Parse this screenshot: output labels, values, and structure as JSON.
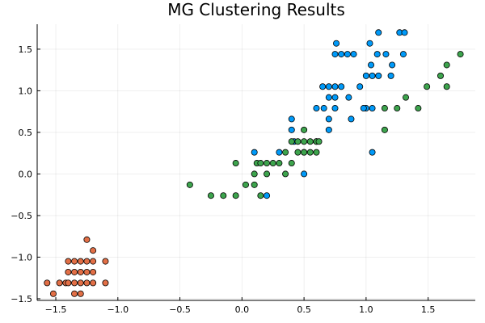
{
  "chart_data": {
    "type": "scatter",
    "title": "MG Clustering Results",
    "xlabel": "",
    "ylabel": "",
    "xlim": [
      -1.65,
      1.88
    ],
    "ylim": [
      -1.52,
      1.8
    ],
    "xticks": [
      -1.5,
      -1.0,
      -0.5,
      0.0,
      0.5,
      1.0,
      1.5
    ],
    "yticks": [
      -1.5,
      -1.0,
      -0.5,
      0.0,
      0.5,
      1.0,
      1.5
    ],
    "grid": true,
    "legend": "none",
    "colors": [
      "#e26f46",
      "#009af9",
      "#3da44d"
    ],
    "series": [
      {
        "points": [
          [
            -1.57,
            -1.31
          ],
          [
            -1.52,
            -1.44
          ],
          [
            -1.47,
            -1.31
          ],
          [
            -1.42,
            -1.31
          ],
          [
            -1.4,
            -1.05
          ],
          [
            -1.4,
            -1.18
          ],
          [
            -1.4,
            -1.31
          ],
          [
            -1.35,
            -1.31
          ],
          [
            -1.35,
            -1.44
          ],
          [
            -1.35,
            -1.18
          ],
          [
            -1.35,
            -1.05
          ],
          [
            -1.3,
            -1.31
          ],
          [
            -1.3,
            -1.18
          ],
          [
            -1.3,
            -1.44
          ],
          [
            -1.3,
            -1.05
          ],
          [
            -1.25,
            -1.31
          ],
          [
            -1.25,
            -1.18
          ],
          [
            -1.25,
            -1.05
          ],
          [
            -1.25,
            -0.79
          ],
          [
            -1.2,
            -1.31
          ],
          [
            -1.2,
            -1.18
          ],
          [
            -1.2,
            -1.05
          ],
          [
            -1.2,
            -0.92
          ],
          [
            -1.1,
            -1.05
          ],
          [
            -1.1,
            -1.31
          ]
        ]
      },
      {
        "points": [
          [
            0.1,
            0.26
          ],
          [
            0.2,
            -0.26
          ],
          [
            0.3,
            0.26
          ],
          [
            0.4,
            0.53
          ],
          [
            0.4,
            0.66
          ],
          [
            0.42,
            0.39
          ],
          [
            0.5,
            0.26
          ],
          [
            0.5,
            0.0
          ],
          [
            0.6,
            0.79
          ],
          [
            0.65,
            1.05
          ],
          [
            0.66,
            0.79
          ],
          [
            0.7,
            1.05
          ],
          [
            0.7,
            0.92
          ],
          [
            0.7,
            0.53
          ],
          [
            0.75,
            1.05
          ],
          [
            0.75,
            0.79
          ],
          [
            0.75,
            0.92
          ],
          [
            0.8,
            1.05
          ],
          [
            0.86,
            0.92
          ],
          [
            0.75,
            1.44
          ],
          [
            0.76,
            1.57
          ],
          [
            0.8,
            1.44
          ],
          [
            0.85,
            1.44
          ],
          [
            0.9,
            1.44
          ],
          [
            0.95,
            1.05
          ],
          [
            1.0,
            0.79
          ],
          [
            1.0,
            1.18
          ],
          [
            1.03,
            1.57
          ],
          [
            1.04,
            1.31
          ],
          [
            1.05,
            1.18
          ],
          [
            1.05,
            0.79
          ],
          [
            1.05,
            0.26
          ],
          [
            1.09,
            1.44
          ],
          [
            1.1,
            1.18
          ],
          [
            1.1,
            1.7
          ],
          [
            1.16,
            1.44
          ],
          [
            1.2,
            1.18
          ],
          [
            1.21,
            1.31
          ],
          [
            1.27,
            1.7
          ],
          [
            1.3,
            1.44
          ],
          [
            1.31,
            1.7
          ],
          [
            0.98,
            0.79
          ],
          [
            0.88,
            0.66
          ],
          [
            0.6,
            0.39
          ],
          [
            0.7,
            0.66
          ]
        ]
      },
      {
        "points": [
          [
            -0.42,
            -0.13
          ],
          [
            -0.25,
            -0.26
          ],
          [
            -0.15,
            -0.26
          ],
          [
            -0.05,
            -0.26
          ],
          [
            -0.05,
            0.13
          ],
          [
            0.03,
            -0.13
          ],
          [
            0.1,
            0.0
          ],
          [
            0.1,
            -0.13
          ],
          [
            0.12,
            0.13
          ],
          [
            0.15,
            -0.26
          ],
          [
            0.15,
            0.13
          ],
          [
            0.2,
            0.13
          ],
          [
            0.2,
            0.0
          ],
          [
            0.25,
            0.13
          ],
          [
            0.3,
            0.13
          ],
          [
            0.35,
            0.0
          ],
          [
            0.35,
            0.26
          ],
          [
            0.4,
            0.39
          ],
          [
            0.4,
            0.13
          ],
          [
            0.45,
            0.26
          ],
          [
            0.45,
            0.39
          ],
          [
            0.5,
            0.26
          ],
          [
            0.5,
            0.39
          ],
          [
            0.5,
            0.53
          ],
          [
            0.55,
            0.26
          ],
          [
            0.55,
            0.39
          ],
          [
            0.6,
            0.39
          ],
          [
            0.6,
            0.26
          ],
          [
            0.62,
            0.39
          ],
          [
            1.15,
            0.53
          ],
          [
            1.15,
            0.79
          ],
          [
            1.25,
            0.79
          ],
          [
            1.32,
            0.92
          ],
          [
            1.42,
            0.79
          ],
          [
            1.49,
            1.05
          ],
          [
            1.6,
            1.18
          ],
          [
            1.65,
            1.31
          ],
          [
            1.65,
            1.05
          ],
          [
            1.76,
            1.44
          ]
        ]
      }
    ]
  }
}
